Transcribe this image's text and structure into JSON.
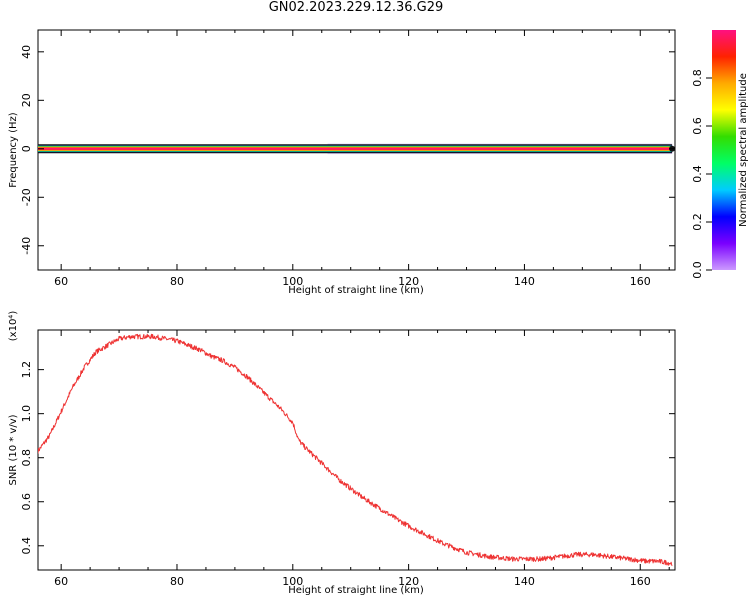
{
  "figure": {
    "title": "GN02.2023.229.12.36.G29"
  },
  "chart_data": [
    {
      "type": "heatmap",
      "xlabel": "Height of straight line (km)",
      "ylabel": "Frequency (Hz)",
      "xlim": [
        56,
        166
      ],
      "ylim": [
        -50,
        49
      ],
      "xticks": [
        60,
        80,
        100,
        120,
        140,
        160
      ],
      "yticks": [
        -40,
        -20,
        0,
        20,
        40
      ],
      "band": {
        "frequency_center": 0,
        "core_halfwidth": 0.5,
        "halo_halfwidth": 1.6,
        "x_start": 56,
        "x_end": 165.5,
        "halo_start": 106
      },
      "colorbar": {
        "label": "Normalized spectral amplitude",
        "range": [
          0.0,
          1.0
        ],
        "ticks": [
          0.0,
          0.2,
          0.4,
          0.6,
          0.8
        ],
        "tick_labels": [
          "0.0",
          "0.2",
          "0.4",
          "0.6",
          "0.8"
        ],
        "stops": [
          "#cc99ff",
          "#7a00ff",
          "#0000ff",
          "#00ccff",
          "#00ff66",
          "#33dd00",
          "#ffff00",
          "#ffaa00",
          "#ff2200",
          "#ff1080"
        ]
      },
      "grid": false
    },
    {
      "type": "line",
      "xlabel": "Height of straight line (km)",
      "ylabel": "SNR (10 * v/v)",
      "multiplier": "(x10⁴)",
      "xlim": [
        56,
        166
      ],
      "ylim": [
        0.29,
        1.38
      ],
      "xticks": [
        60,
        80,
        100,
        120,
        140,
        160
      ],
      "yticks": [
        0.4,
        0.6,
        0.8,
        1.0,
        1.2
      ],
      "ytick_labels": [
        "0.4",
        "0.6",
        "0.8",
        "1.0",
        "1.2"
      ],
      "grid": false,
      "series": [
        {
          "color": "#ee3333",
          "x": [
            56,
            58,
            60,
            62,
            64,
            66,
            68,
            70,
            72,
            74,
            76,
            78,
            80,
            82,
            84,
            86,
            88,
            90,
            92,
            94,
            96,
            98,
            100,
            101,
            102,
            104,
            106,
            108,
            110,
            112,
            115,
            118,
            120,
            123,
            126,
            130,
            134,
            138,
            140,
            143,
            146,
            149,
            152,
            155,
            158,
            161,
            163,
            165.5
          ],
          "values": [
            0.83,
            0.9,
            1.01,
            1.12,
            1.21,
            1.28,
            1.31,
            1.34,
            1.35,
            1.35,
            1.35,
            1.34,
            1.33,
            1.31,
            1.29,
            1.26,
            1.24,
            1.21,
            1.17,
            1.12,
            1.07,
            1.02,
            0.96,
            0.88,
            0.85,
            0.8,
            0.75,
            0.7,
            0.66,
            0.62,
            0.57,
            0.52,
            0.49,
            0.45,
            0.41,
            0.37,
            0.35,
            0.34,
            0.34,
            0.34,
            0.35,
            0.36,
            0.36,
            0.35,
            0.34,
            0.33,
            0.33,
            0.32
          ]
        }
      ]
    }
  ]
}
